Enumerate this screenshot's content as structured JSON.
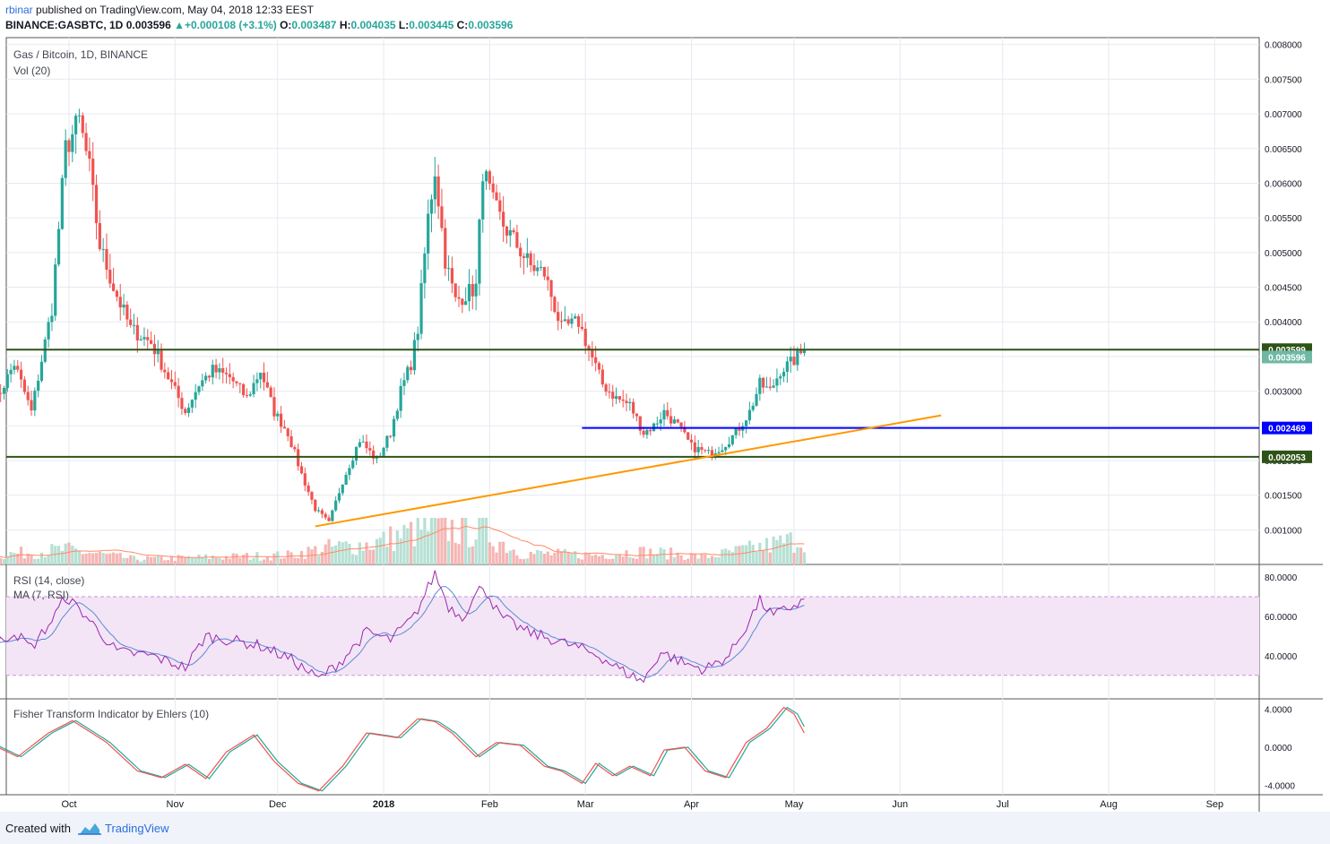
{
  "header": {
    "author": "rbinar",
    "published_text": " published on TradingView.com, May 04, 2018 12:33 EEST",
    "symbol": "BINANCE:GASBTC, 1D",
    "last": "0.003596",
    "change_arrow": "▲",
    "change": "+0.000108 (+3.1%)",
    "o_label": "O:",
    "o_value": "0.003487",
    "h_label": "H:",
    "h_value": "0.004035",
    "l_label": "L:",
    "l_value": "0.003445",
    "c_label": "C:",
    "c_value": "0.003596"
  },
  "footer": {
    "created_with": "Created with",
    "brand": "TradingView",
    "logo_icon": "tradingview-cloud-icon"
  },
  "colors": {
    "up": "#26a69a",
    "down": "#ef5350",
    "accent": "#2a6fdb",
    "level_line": "#2e5316",
    "support_blue": "#0000ff",
    "trendline": "#ff9800",
    "rsi": "#9c27b0",
    "rsi_ma": "#5b8ad6",
    "rsi_band": "#f3e5f5",
    "fisher": "#ef5350",
    "fisher_trigger": "#26a69a",
    "vol_ma": "#ff8a65"
  },
  "chart_data": [
    {
      "type": "candlestick",
      "title": "Gas / Bitcoin, 1D, BINANCE",
      "indicator_label": "Vol (20)",
      "x_start": "2017-09-09",
      "x_ticks": [
        {
          "label": "Oct",
          "date": "2017-10-01"
        },
        {
          "label": "Nov",
          "date": "2017-11-01"
        },
        {
          "label": "Dec",
          "date": "2017-12-01"
        },
        {
          "label": "2018",
          "date": "2018-01-01",
          "bold": true
        },
        {
          "label": "Feb",
          "date": "2018-02-01"
        },
        {
          "label": "Mar",
          "date": "2018-03-01"
        },
        {
          "label": "Apr",
          "date": "2018-04-01"
        },
        {
          "label": "May",
          "date": "2018-05-01"
        },
        {
          "label": "Jun",
          "date": "2018-06-01"
        },
        {
          "label": "Jul",
          "date": "2018-07-01"
        },
        {
          "label": "Aug",
          "date": "2018-08-01"
        },
        {
          "label": "Sep",
          "date": "2018-09-01"
        }
      ],
      "y_range": [
        0.0005,
        0.0081
      ],
      "y_ticks": [
        "0.001000",
        "0.001500",
        "0.002000",
        "0.002500",
        "0.003000",
        "0.003500",
        "0.004000",
        "0.004500",
        "0.005000",
        "0.005500",
        "0.006000",
        "0.006500",
        "0.007000",
        "0.007500",
        "0.008000"
      ],
      "price_anchors": [
        [
          "2017-09-09",
          0.0028
        ],
        [
          "2017-09-15",
          0.0034
        ],
        [
          "2017-09-20",
          0.0027
        ],
        [
          "2017-09-26",
          0.0042
        ],
        [
          "2017-09-30",
          0.0065
        ],
        [
          "2017-10-04",
          0.0069
        ],
        [
          "2017-10-07",
          0.0062
        ],
        [
          "2017-10-10",
          0.0051
        ],
        [
          "2017-10-14",
          0.0045
        ],
        [
          "2017-10-19",
          0.0039
        ],
        [
          "2017-10-25",
          0.0037
        ],
        [
          "2017-10-29",
          0.0033
        ],
        [
          "2017-11-04",
          0.0027
        ],
        [
          "2017-11-08",
          0.0031
        ],
        [
          "2017-11-12",
          0.0033
        ],
        [
          "2017-11-17",
          0.0032
        ],
        [
          "2017-11-22",
          0.0029
        ],
        [
          "2017-11-26",
          0.0033
        ],
        [
          "2017-11-30",
          0.0027
        ],
        [
          "2017-12-04",
          0.0024
        ],
        [
          "2017-12-08",
          0.0018
        ],
        [
          "2017-12-12",
          0.0013
        ],
        [
          "2017-12-16",
          0.0011
        ],
        [
          "2017-12-20",
          0.0017
        ],
        [
          "2017-12-25",
          0.0023
        ],
        [
          "2017-12-30",
          0.002
        ],
        [
          "2018-01-03",
          0.0024
        ],
        [
          "2018-01-06",
          0.003
        ],
        [
          "2018-01-09",
          0.0034
        ],
        [
          "2018-01-11",
          0.0039
        ],
        [
          "2018-01-14",
          0.0055
        ],
        [
          "2018-01-16",
          0.0062
        ],
        [
          "2018-01-19",
          0.0049
        ],
        [
          "2018-01-22",
          0.0043
        ],
        [
          "2018-01-25",
          0.0044
        ],
        [
          "2018-01-28",
          0.0045
        ],
        [
          "2018-01-30",
          0.0062
        ],
        [
          "2018-02-02",
          0.0057
        ],
        [
          "2018-02-05",
          0.0054
        ],
        [
          "2018-02-09",
          0.0051
        ],
        [
          "2018-02-13",
          0.0048
        ],
        [
          "2018-02-17",
          0.0047
        ],
        [
          "2018-02-22",
          0.0039
        ],
        [
          "2018-02-27",
          0.004
        ],
        [
          "2018-03-02",
          0.0036
        ],
        [
          "2018-03-06",
          0.0031
        ],
        [
          "2018-03-10",
          0.0029
        ],
        [
          "2018-03-14",
          0.0028
        ],
        [
          "2018-03-18",
          0.0024
        ],
        [
          "2018-03-21",
          0.0025
        ],
        [
          "2018-03-24",
          0.0027
        ],
        [
          "2018-03-28",
          0.0025
        ],
        [
          "2018-04-01",
          0.0022
        ],
        [
          "2018-04-06",
          0.0021
        ],
        [
          "2018-04-10",
          0.0022
        ],
        [
          "2018-04-14",
          0.0024
        ],
        [
          "2018-04-18",
          0.0027
        ],
        [
          "2018-04-21",
          0.0031
        ],
        [
          "2018-04-24",
          0.003
        ],
        [
          "2018-04-27",
          0.0033
        ],
        [
          "2018-04-30",
          0.0034
        ],
        [
          "2018-05-04",
          0.003596
        ]
      ],
      "volume_relative_anchors": [
        [
          "2017-09-09",
          0.25
        ],
        [
          "2017-09-30",
          0.4
        ],
        [
          "2017-10-20",
          0.15
        ],
        [
          "2017-11-15",
          0.2
        ],
        [
          "2017-12-04",
          0.25
        ],
        [
          "2017-12-16",
          0.45
        ],
        [
          "2017-12-28",
          0.55
        ],
        [
          "2018-01-15",
          1.0
        ],
        [
          "2018-01-30",
          0.9
        ],
        [
          "2018-02-10",
          0.3
        ],
        [
          "2018-03-05",
          0.25
        ],
        [
          "2018-03-15",
          0.35
        ],
        [
          "2018-03-25",
          0.3
        ],
        [
          "2018-04-05",
          0.2
        ],
        [
          "2018-04-20",
          0.45
        ],
        [
          "2018-05-04",
          0.7
        ]
      ],
      "horizontal_levels": [
        {
          "value": 0.003599,
          "label": "0.003599",
          "style": "level"
        },
        {
          "value": 0.002053,
          "label": "0.002053",
          "style": "level"
        },
        {
          "value": 0.002469,
          "label": "0.002469",
          "style": "blue",
          "from": "2018-02-28"
        }
      ],
      "last_price_label": "0.003596",
      "trendline": {
        "from": [
          "2017-12-12",
          0.00105
        ],
        "to": [
          "2018-06-13",
          0.00265
        ]
      }
    },
    {
      "type": "line",
      "title": "RSI (14, close)",
      "ma_label": "MA (7, RSI)",
      "y_range": [
        18,
        86
      ],
      "y_ticks": [
        "40.0000",
        "60.0000",
        "80.0000"
      ],
      "band": [
        30,
        70
      ],
      "rsi_anchors": [
        [
          "2017-09-09",
          45
        ],
        [
          "2017-09-15",
          52
        ],
        [
          "2017-09-20",
          44
        ],
        [
          "2017-09-26",
          58
        ],
        [
          "2017-09-30",
          70
        ],
        [
          "2017-10-05",
          62
        ],
        [
          "2017-10-10",
          52
        ],
        [
          "2017-10-15",
          42
        ],
        [
          "2017-10-25",
          40
        ],
        [
          "2017-11-04",
          34
        ],
        [
          "2017-11-10",
          50
        ],
        [
          "2017-11-17",
          48
        ],
        [
          "2017-11-26",
          45
        ],
        [
          "2017-12-05",
          38
        ],
        [
          "2017-12-13",
          28
        ],
        [
          "2017-12-20",
          38
        ],
        [
          "2017-12-27",
          52
        ],
        [
          "2018-01-03",
          48
        ],
        [
          "2018-01-10",
          60
        ],
        [
          "2018-01-16",
          82
        ],
        [
          "2018-01-20",
          65
        ],
        [
          "2018-01-24",
          60
        ],
        [
          "2018-01-30",
          76
        ],
        [
          "2018-02-04",
          60
        ],
        [
          "2018-02-12",
          52
        ],
        [
          "2018-02-20",
          48
        ],
        [
          "2018-02-27",
          44
        ],
        [
          "2018-03-05",
          40
        ],
        [
          "2018-03-12",
          32
        ],
        [
          "2018-03-18",
          27
        ],
        [
          "2018-03-23",
          42
        ],
        [
          "2018-03-30",
          36
        ],
        [
          "2018-04-05",
          33
        ],
        [
          "2018-04-12",
          40
        ],
        [
          "2018-04-17",
          55
        ],
        [
          "2018-04-21",
          68
        ],
        [
          "2018-04-25",
          60
        ],
        [
          "2018-04-29",
          64
        ],
        [
          "2018-05-04",
          68
        ]
      ]
    },
    {
      "type": "line",
      "title": "Fisher Transform Indicator by Ehlers (10)",
      "y_range": [
        -5,
        5
      ],
      "y_ticks": [
        "-4.0000",
        "0.0000",
        "4.0000"
      ],
      "fisher_anchors": [
        [
          "2017-09-09",
          0.2
        ],
        [
          "2017-09-16",
          -1.0
        ],
        [
          "2017-09-25",
          1.5
        ],
        [
          "2017-10-02",
          2.8
        ],
        [
          "2017-10-12",
          0.5
        ],
        [
          "2017-10-21",
          -2.5
        ],
        [
          "2017-10-28",
          -3.2
        ],
        [
          "2017-11-04",
          -1.8
        ],
        [
          "2017-11-10",
          -3.3
        ],
        [
          "2017-11-16",
          -0.5
        ],
        [
          "2017-11-24",
          1.3
        ],
        [
          "2017-11-30",
          -1.5
        ],
        [
          "2017-12-07",
          -3.8
        ],
        [
          "2017-12-13",
          -4.6
        ],
        [
          "2017-12-20",
          -2.0
        ],
        [
          "2017-12-27",
          1.5
        ],
        [
          "2018-01-05",
          1.0
        ],
        [
          "2018-01-11",
          3.0
        ],
        [
          "2018-01-16",
          2.7
        ],
        [
          "2018-01-21",
          1.5
        ],
        [
          "2018-01-28",
          -1.0
        ],
        [
          "2018-02-03",
          0.5
        ],
        [
          "2018-02-10",
          0.2
        ],
        [
          "2018-02-17",
          -2.0
        ],
        [
          "2018-02-22",
          -2.5
        ],
        [
          "2018-02-28",
          -3.8
        ],
        [
          "2018-03-04",
          -1.7
        ],
        [
          "2018-03-09",
          -3.0
        ],
        [
          "2018-03-14",
          -2.0
        ],
        [
          "2018-03-20",
          -3.0
        ],
        [
          "2018-03-24",
          -0.3
        ],
        [
          "2018-03-30",
          0.0
        ],
        [
          "2018-04-05",
          -2.5
        ],
        [
          "2018-04-11",
          -3.2
        ],
        [
          "2018-04-17",
          0.5
        ],
        [
          "2018-04-23",
          2.0
        ],
        [
          "2018-04-28",
          4.2
        ],
        [
          "2018-05-01",
          3.5
        ],
        [
          "2018-05-04",
          1.5
        ]
      ]
    }
  ]
}
